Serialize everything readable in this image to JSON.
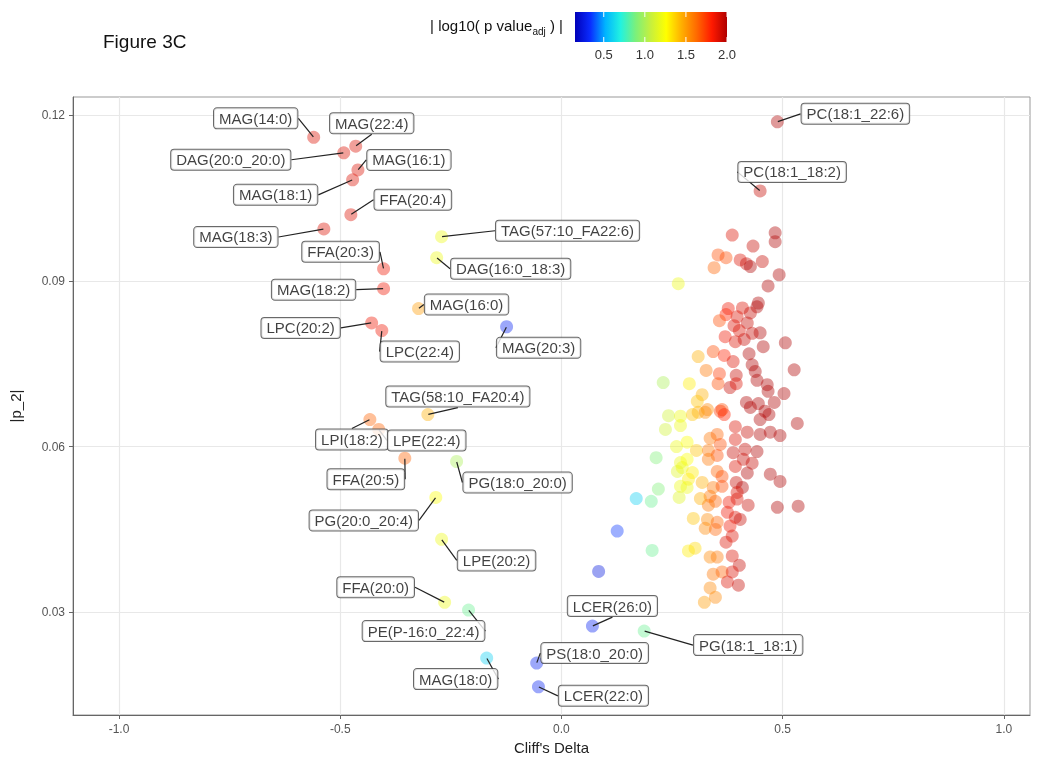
{
  "chart_data": {
    "type": "scatter",
    "title": "Figure 3C",
    "xlabel": "Cliff's Delta",
    "ylabel": "|p_2|",
    "clabel": "| log10( p value$_{adj}$ ) |",
    "clim": [
      0.15,
      2.0
    ],
    "cticks": [
      {
        "value": 0.5,
        "label": "0.5"
      },
      {
        "value": 1.0,
        "label": "1.0"
      },
      {
        "value": 1.5,
        "label": "1.5"
      },
      {
        "value": 2.0,
        "label": "2.0"
      }
    ],
    "xlim": [
      -1.104,
      1.059
    ],
    "xticks": [
      {
        "value": -1,
        "label": "-1.0"
      },
      {
        "value": -0.5,
        "label": "-0.5"
      },
      {
        "value": 0,
        "label": "0.0"
      },
      {
        "value": 0.5,
        "label": "0.5"
      },
      {
        "value": 1,
        "label": "1.0"
      }
    ],
    "ylim": [
      0.0114,
      0.1233
    ],
    "yticks": [
      0.03,
      0.06,
      0.09,
      0.12
    ],
    "grid": true,
    "marker": "circle",
    "x": [
      -0.56,
      -0.465,
      -0.492,
      -0.46,
      -0.472,
      -0.476,
      -0.537,
      -0.271,
      -0.402,
      -0.282,
      -0.402,
      -0.323,
      -0.429,
      -0.406,
      -0.124,
      -0.302,
      -0.433,
      -0.413,
      -0.354,
      -0.237,
      -0.284,
      -0.271,
      -0.264,
      -0.21,
      -0.169,
      0.07,
      -0.056,
      -0.052,
      0.187,
      0.488,
      0.449,
      0.386,
      0.483,
      0.483,
      0.433,
      0.354,
      0.372,
      0.345,
      0.404,
      0.418,
      0.427,
      0.454,
      0.492,
      0.467,
      0.264,
      0.445,
      0.442,
      0.409,
      0.377,
      0.372,
      0.357,
      0.397,
      0.427,
      0.39,
      0.42,
      0.402,
      0.449,
      0.431,
      0.37,
      0.393,
      0.413,
      0.456,
      0.506,
      0.343,
      0.309,
      0.368,
      0.388,
      0.424,
      0.431,
      0.526,
      0.327,
      0.357,
      0.395,
      0.438,
      0.23,
      0.289,
      0.354,
      0.381,
      0.395,
      0.442,
      0.465,
      0.467,
      0.503,
      0.318,
      0.307,
      0.33,
      0.363,
      0.418,
      0.445,
      0.481,
      0.427,
      0.46,
      0.242,
      0.269,
      0.296,
      0.309,
      0.325,
      0.359,
      0.368,
      0.449,
      0.469,
      0.533,
      0.393,
      0.42,
      0.449,
      0.472,
      0.494,
      0.393,
      0.336,
      0.352,
      0.359,
      0.235,
      0.269,
      0.26,
      0.284,
      0.305,
      0.214,
      0.332,
      0.352,
      0.388,
      0.415,
      0.442,
      0.411,
      0.269,
      0.284,
      0.332,
      0.393,
      0.431,
      0.262,
      0.273,
      0.296,
      0.287,
      0.352,
      0.363,
      0.42,
      0.472,
      0.494,
      0.318,
      0.269,
      0.284,
      0.343,
      0.363,
      0.395,
      0.409,
      0.397,
      0.219,
      0.266,
      0.314,
      0.336,
      0.348,
      0.379,
      0.397,
      0.422,
      0.488,
      0.535,
      0.169,
      0.203,
      0.332,
      0.375,
      0.393,
      0.404,
      0.298,
      0.33,
      0.352,
      0.325,
      0.348,
      0.381,
      0.386,
      0.372,
      0.126,
      0.205,
      0.287,
      0.302,
      0.336,
      0.352,
      0.386,
      0.402,
      0.084,
      0.343,
      0.363,
      0.386,
      0.375,
      0.4,
      0.336,
      0.348,
      0.323
    ],
    "values": [
      0.116,
      0.1144,
      0.1132,
      0.1101,
      0.1083,
      0.102,
      0.0994,
      0.098,
      0.0922,
      0.0942,
      0.0886,
      0.085,
      0.0824,
      0.081,
      0.0817,
      0.0658,
      0.0649,
      0.0631,
      0.0579,
      0.0573,
      0.0508,
      0.0432,
      0.0318,
      0.0304,
      0.0217,
      0.0275,
      0.0208,
      0.0165,
      0.0266,
      0.1188,
      0.1063,
      0.0983,
      0.0987,
      0.0971,
      0.0963,
      0.0947,
      0.0942,
      0.0924,
      0.0938,
      0.0931,
      0.0926,
      0.0935,
      0.0911,
      0.0891,
      0.0895,
      0.086,
      0.0853,
      0.0851,
      0.085,
      0.0839,
      0.0828,
      0.0835,
      0.0842,
      0.0819,
      0.0824,
      0.081,
      0.0806,
      0.0805,
      0.0799,
      0.079,
      0.0794,
      0.0781,
      0.0788,
      0.0772,
      0.0763,
      0.0765,
      0.0754,
      0.0768,
      0.0748,
      0.0739,
      0.0738,
      0.0732,
      0.0729,
      0.0736,
      0.0716,
      0.0714,
      0.0714,
      0.0707,
      0.0714,
      0.072,
      0.0712,
      0.07,
      0.0696,
      0.0694,
      0.0682,
      0.0667,
      0.0667,
      0.068,
      0.0678,
      0.068,
      0.0671,
      0.0664,
      0.0656,
      0.0655,
      0.0658,
      0.0662,
      0.0662,
      0.0664,
      0.0658,
      0.0649,
      0.0658,
      0.0642,
      0.0636,
      0.0626,
      0.0622,
      0.0626,
      0.062,
      0.0613,
      0.0615,
      0.0622,
      0.0604,
      0.0631,
      0.0638,
      0.06,
      0.0608,
      0.0593,
      0.058,
      0.0593,
      0.0584,
      0.0589,
      0.0595,
      0.0591,
      0.0577,
      0.0571,
      0.0577,
      0.0577,
      0.0564,
      0.057,
      0.0555,
      0.0562,
      0.0553,
      0.0541,
      0.0555,
      0.0546,
      0.0552,
      0.055,
      0.0537,
      0.0535,
      0.0528,
      0.0526,
      0.0526,
      0.0528,
      0.0535,
      0.0526,
      0.0517,
      0.0523,
      0.0508,
      0.0506,
      0.051,
      0.0501,
      0.0499,
      0.0505,
      0.0494,
      0.049,
      0.0492,
      0.0506,
      0.0501,
      0.0494,
      0.0481,
      0.0472,
      0.0468,
      0.047,
      0.0468,
      0.0463,
      0.0452,
      0.045,
      0.0456,
      0.0438,
      0.0427,
      0.0447,
      0.0412,
      0.0411,
      0.0416,
      0.04,
      0.04,
      0.0402,
      0.0385,
      0.0374,
      0.0369,
      0.0373,
      0.0373,
      0.0355,
      0.0349,
      0.0344,
      0.0327,
      0.0318
    ],
    "cvalues": [
      1.9,
      1.9,
      1.9,
      1.9,
      1.9,
      1.9,
      1.9,
      1.2,
      1.85,
      1.2,
      1.85,
      1.5,
      1.85,
      1.85,
      0.3,
      1.45,
      1.65,
      1.65,
      1.65,
      1.0,
      1.25,
      1.2,
      1.2,
      0.85,
      0.6,
      0.3,
      0.3,
      0.3,
      0.85,
      2.0,
      1.95,
      1.9,
      2.0,
      2.0,
      1.95,
      1.7,
      1.7,
      1.65,
      1.9,
      1.95,
      2.0,
      1.95,
      2.0,
      2.0,
      1.2,
      2.0,
      2.0,
      1.9,
      1.85,
      1.8,
      1.7,
      1.9,
      1.95,
      1.9,
      1.95,
      1.9,
      2.0,
      1.95,
      1.85,
      1.9,
      1.95,
      2.0,
      2.0,
      1.7,
      1.45,
      1.8,
      1.9,
      2.0,
      2.0,
      2.0,
      1.6,
      1.75,
      1.95,
      2.0,
      1.0,
      1.3,
      1.7,
      1.95,
      1.9,
      2.0,
      2.0,
      2.0,
      2.0,
      1.45,
      1.4,
      1.55,
      1.7,
      2.0,
      2.0,
      2.0,
      2.0,
      2.0,
      1.1,
      1.2,
      1.4,
      1.45,
      1.55,
      1.75,
      1.8,
      2.0,
      2.0,
      2.0,
      1.9,
      1.95,
      2.0,
      2.0,
      2.0,
      1.9,
      1.6,
      1.65,
      1.7,
      1.1,
      1.2,
      1.2,
      1.25,
      1.4,
      0.9,
      1.6,
      1.7,
      1.95,
      1.95,
      2.0,
      1.95,
      1.2,
      1.25,
      1.6,
      1.9,
      1.95,
      1.15,
      1.2,
      1.3,
      1.3,
      1.65,
      1.7,
      2.0,
      2.0,
      2.0,
      1.45,
      1.2,
      1.2,
      1.6,
      1.7,
      1.95,
      2.0,
      1.9,
      0.9,
      1.15,
      1.45,
      1.6,
      1.65,
      1.85,
      1.9,
      1.95,
      2.0,
      2.0,
      0.6,
      0.85,
      1.6,
      1.85,
      1.9,
      1.95,
      1.4,
      1.55,
      1.65,
      1.55,
      1.65,
      1.85,
      1.9,
      1.9,
      0.35,
      0.85,
      1.3,
      1.35,
      1.55,
      1.6,
      1.9,
      1.95,
      0.25,
      1.6,
      1.65,
      1.9,
      1.9,
      1.95,
      1.55,
      1.55,
      1.5
    ],
    "annotations": [
      {
        "text": "MAG(14:0)",
        "x": -0.56,
        "y": 0.116
      },
      {
        "text": "MAG(22:4)",
        "x": -0.465,
        "y": 0.1144
      },
      {
        "text": "DAG(20:0_20:0)",
        "x": -0.492,
        "y": 0.1132
      },
      {
        "text": "MAG(16:1)",
        "x": -0.46,
        "y": 0.1101
      },
      {
        "text": "MAG(18:1)",
        "x": -0.472,
        "y": 0.1083
      },
      {
        "text": "FFA(20:4)",
        "x": -0.476,
        "y": 0.102
      },
      {
        "text": "MAG(18:3)",
        "x": -0.537,
        "y": 0.0994
      },
      {
        "text": "TAG(57:10_FA22:6)",
        "x": -0.271,
        "y": 0.098
      },
      {
        "text": "FFA(20:3)",
        "x": -0.402,
        "y": 0.0922
      },
      {
        "text": "DAG(16:0_18:3)",
        "x": -0.282,
        "y": 0.0942
      },
      {
        "text": "MAG(18:2)",
        "x": -0.402,
        "y": 0.0886
      },
      {
        "text": "MAG(16:0)",
        "x": -0.323,
        "y": 0.085
      },
      {
        "text": "LPC(20:2)",
        "x": -0.429,
        "y": 0.0824
      },
      {
        "text": "LPC(22:4)",
        "x": -0.406,
        "y": 0.081
      },
      {
        "text": "MAG(20:3)",
        "x": -0.124,
        "y": 0.0817
      },
      {
        "text": "TAG(58:10_FA20:4)",
        "x": -0.302,
        "y": 0.0658
      },
      {
        "text": "LPI(18:2)",
        "x": -0.433,
        "y": 0.0649
      },
      {
        "text": "LPE(22:4)",
        "x": -0.413,
        "y": 0.0631
      },
      {
        "text": "FFA(20:5)",
        "x": -0.354,
        "y": 0.0579
      },
      {
        "text": "PG(18:0_20:0)",
        "x": -0.237,
        "y": 0.0573
      },
      {
        "text": "PG(20:0_20:4)",
        "x": -0.284,
        "y": 0.0508
      },
      {
        "text": "LPE(20:2)",
        "x": -0.271,
        "y": 0.0432
      },
      {
        "text": "FFA(20:0)",
        "x": -0.264,
        "y": 0.0318
      },
      {
        "text": "PE(P-16:0_22:4)",
        "x": -0.21,
        "y": 0.0304
      },
      {
        "text": "MAG(18:0)",
        "x": -0.169,
        "y": 0.0217
      },
      {
        "text": "LCER(26:0)",
        "x": 0.07,
        "y": 0.0275
      },
      {
        "text": "PS(18:0_20:0)",
        "x": -0.056,
        "y": 0.0208
      },
      {
        "text": "LCER(22:0)",
        "x": -0.052,
        "y": 0.0165
      },
      {
        "text": "PG(18:1_18:1)",
        "x": 0.187,
        "y": 0.0266
      },
      {
        "text": "PC(18:1_22:6)",
        "x": 0.488,
        "y": 0.1188
      },
      {
        "text": "PC(18:1_18:2)",
        "x": 0.449,
        "y": 0.1063
      }
    ]
  }
}
